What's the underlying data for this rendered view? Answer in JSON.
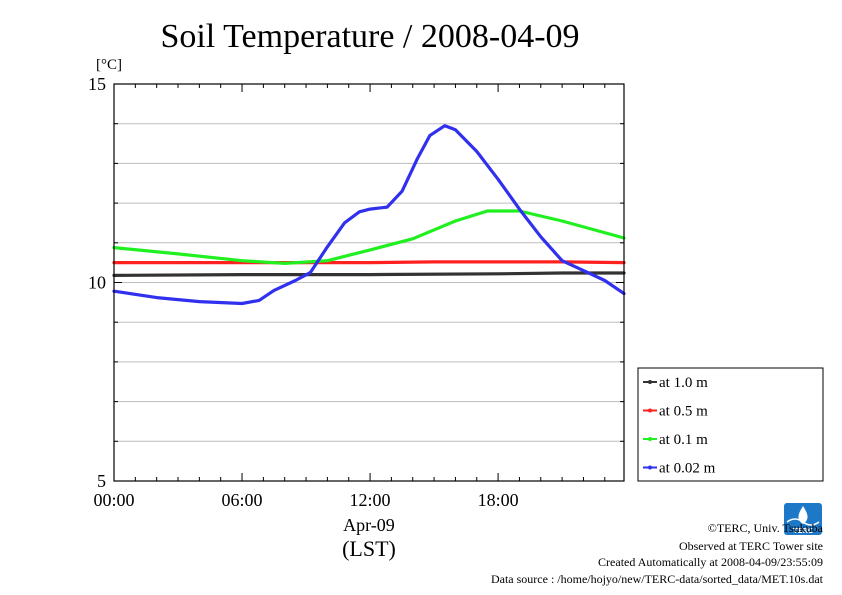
{
  "chart_data": {
    "type": "line",
    "title": "Soil Temperature / 2008-04-09",
    "y_unit": "[°C]",
    "ylim": [
      5,
      15
    ],
    "y_ticks": [
      "5",
      "10",
      "15"
    ],
    "x_hours_range": [
      0,
      23.9
    ],
    "x_ticks": [
      "00:00",
      "06:00",
      "12:00",
      "18:00"
    ],
    "x_date_label": "Apr-09",
    "x_timezone_label": "(LST)",
    "grid": true,
    "legend_position": "right",
    "series": [
      {
        "name": "at 1.0 m",
        "color": "#333333",
        "x": [
          0,
          6,
          12,
          18,
          21,
          23.9
        ],
        "values": [
          10.18,
          10.2,
          10.2,
          10.22,
          10.24,
          10.24
        ]
      },
      {
        "name": "at 0.5 m",
        "color": "#ff2020",
        "x": [
          0,
          6,
          9,
          12,
          15,
          18,
          21,
          23.9
        ],
        "values": [
          10.5,
          10.5,
          10.5,
          10.5,
          10.52,
          10.52,
          10.52,
          10.5
        ]
      },
      {
        "name": "at 0.1 m",
        "color": "#20f020",
        "x": [
          0,
          3,
          6,
          8,
          10,
          12,
          14,
          16,
          17.5,
          19,
          21,
          23.9
        ],
        "values": [
          10.88,
          10.72,
          10.55,
          10.48,
          10.55,
          10.82,
          11.1,
          11.55,
          11.8,
          11.8,
          11.55,
          11.12
        ]
      },
      {
        "name": "at 0.02 m",
        "color": "#3030ee",
        "x": [
          0,
          2,
          4,
          6,
          6.8,
          7.5,
          8.5,
          9.2,
          10,
          10.8,
          11.5,
          12,
          12.8,
          13.5,
          14.2,
          14.8,
          15.5,
          16,
          17,
          18,
          19,
          20,
          21,
          22,
          23,
          23.9
        ],
        "values": [
          9.78,
          9.62,
          9.52,
          9.47,
          9.55,
          9.8,
          10.05,
          10.25,
          10.9,
          11.5,
          11.78,
          11.85,
          11.9,
          12.3,
          13.1,
          13.7,
          13.95,
          13.85,
          13.3,
          12.6,
          11.85,
          11.15,
          10.55,
          10.3,
          10.05,
          9.72
        ]
      }
    ]
  },
  "footer": {
    "copyright": "©TERC, Univ. Tsukuba",
    "site": "Observed at TERC Tower site",
    "created": "Created Automatically at 2008-04-09/23:55:09",
    "source": "Data source : /home/hojyo/new/TERC-data/sorted_data/MET.10s.dat"
  },
  "logo": {
    "text": "TERC"
  }
}
